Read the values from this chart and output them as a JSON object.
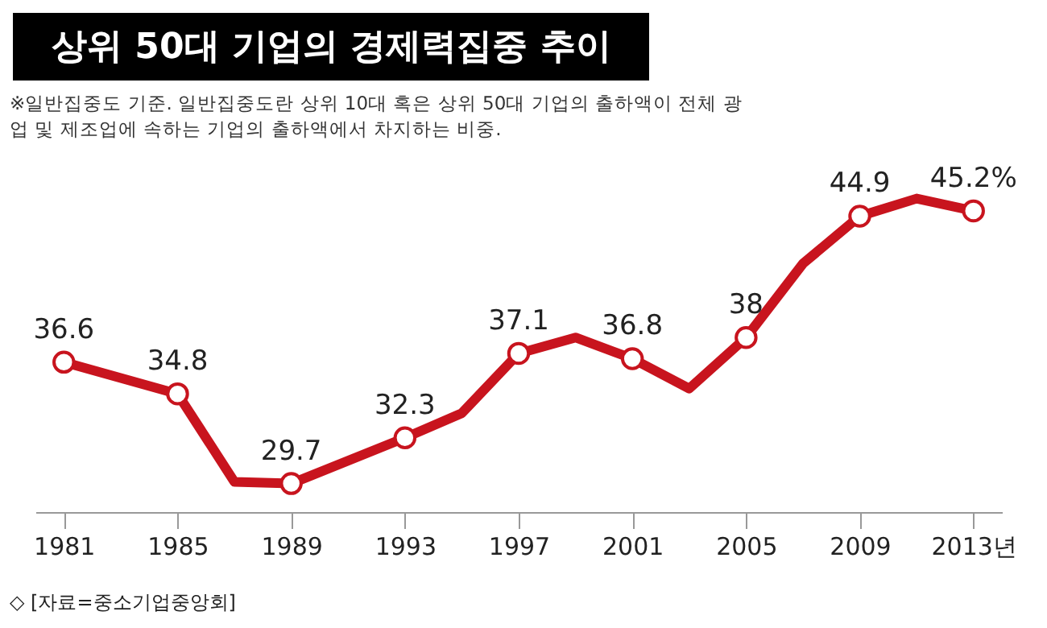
{
  "chart_data": {
    "type": "line",
    "title": "상위 50대 기업의 경제력집중 추이",
    "subtitle": "※일반집중도 기준. 일반집중도란 상위 10대 혹은 상위 50대 기업의 출하액이 전체 광업 및 제조업에 속하는 기업의 출하액에서 차지하는 비중.",
    "annotations": [
      "◇ [자료=중소기업중앙회]"
    ],
    "x": [
      1981,
      1985,
      1987,
      1989,
      1993,
      1995,
      1997,
      1999,
      2001,
      2003,
      2005,
      2007,
      2009,
      2011,
      2013
    ],
    "series": [
      {
        "color": "#c8141e",
        "values": [
          36.6,
          34.8,
          29.8,
          29.7,
          32.3,
          33.7,
          37.1,
          38.0,
          36.8,
          35.1,
          38,
          42.2,
          44.9,
          45.9,
          45.2
        ],
        "value_labels": [
          "36.6",
          "34.8",
          null,
          "29.7",
          "32.3",
          null,
          "37.1",
          null,
          "36.8",
          null,
          "38",
          null,
          "44.9",
          null,
          "45.2%"
        ]
      }
    ],
    "xlim": [
      1980,
      2014
    ],
    "xticks": [
      1981,
      1985,
      1989,
      1993,
      1997,
      2001,
      2005,
      2009,
      {
        "value": 2013,
        "label": "2013년"
      }
    ],
    "marker": "circle",
    "grid": false
  }
}
